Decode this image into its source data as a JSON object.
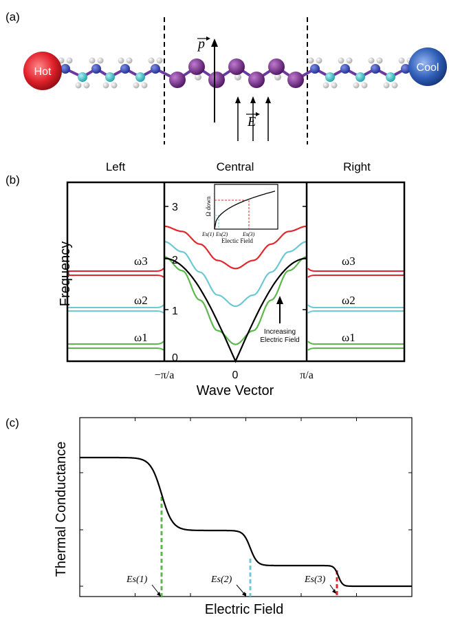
{
  "panel_a": {
    "label": "(a)",
    "hot_label": "Hot",
    "cool_label": "Cool",
    "p_label": "p",
    "e_label": "E",
    "colors": {
      "hot": "#e0202a",
      "cool": "#2f5fb8",
      "chain_blue": "#3346b4",
      "chain_cyan": "#2fc8c8",
      "chain_purple": "#7a2a8a",
      "hydrogen": "#ececec"
    }
  },
  "panel_b": {
    "label": "(b)",
    "region_left": "Left",
    "region_central": "Central",
    "region_right": "Right",
    "ylabel": "Frequency",
    "xlabel": "Wave Vector",
    "omega_labels": [
      "ω3",
      "ω2",
      "ω1"
    ],
    "yticks": [
      "0",
      "1",
      "2",
      "3"
    ],
    "xticks": [
      "−π/a",
      "0",
      "π/a"
    ],
    "annotation": "Increasing\nElectric Field",
    "inset": {
      "ylabel": "Ω down",
      "xlabel": "Electic Field",
      "xticks": [
        "Es(1)",
        "Es(2)",
        "Es(3)"
      ]
    },
    "colors": {
      "red": "#e3262b",
      "cyan": "#6cc8d4",
      "green": "#5ab94a",
      "black": "#000000"
    }
  },
  "panel_c": {
    "label": "(c)",
    "ylabel": "Thermal Conductance",
    "xlabel": "Electric Field",
    "markers": [
      "Es(1)",
      "Es(2)",
      "Es(3)"
    ],
    "marker_colors": [
      "#5ab94a",
      "#6cc8d4",
      "#e3262b"
    ]
  },
  "chart_data": [
    {
      "type": "line",
      "xlabel": "Wave Vector",
      "ylabel": "Frequency",
      "x_ticks": [
        "−π/a",
        "0",
        "π/a"
      ],
      "ylim": [
        0,
        3.35
      ],
      "series": [
        {
          "k": [
            -1,
            -0.75,
            -0.5,
            -0.25,
            0,
            0.25,
            0.5,
            0.75,
            1
          ],
          "values": [
            2.65,
            2.55,
            2.3,
            1.98,
            1.82,
            1.98,
            2.3,
            2.55,
            2.65
          ]
        },
        {
          "k": [
            -1,
            -0.75,
            -0.5,
            -0.25,
            0,
            0.25,
            0.5,
            0.75,
            1
          ],
          "values": [
            2.35,
            2.15,
            1.75,
            1.3,
            1.08,
            1.3,
            1.75,
            2.15,
            2.35
          ]
        },
        {
          "k": [
            -1,
            -0.75,
            -0.5,
            -0.25,
            0,
            0.25,
            0.5,
            0.75,
            1
          ],
          "values": [
            2.05,
            1.78,
            1.2,
            0.6,
            0.33,
            0.6,
            1.2,
            1.78,
            2.05
          ]
        },
        {
          "k": [
            -1,
            -0.75,
            -0.5,
            -0.25,
            0,
            0.25,
            0.5,
            0.75,
            1
          ],
          "values": [
            2.02,
            1.75,
            1.12,
            0.5,
            0,
            0.5,
            1.12,
            1.75,
            2.02
          ]
        }
      ]
    },
    {
      "type": "line",
      "xlabel": "Electic Field",
      "ylabel": "Ω down",
      "x_ticks": [
        "Es(1)",
        "Es(2)",
        "Es(3)"
      ],
      "series": [
        {
          "x": [
            0,
            0.2,
            0.4,
            0.6,
            0.8,
            1.0
          ],
          "values": [
            0,
            0.45,
            0.62,
            0.74,
            0.84,
            0.92
          ]
        }
      ]
    },
    {
      "type": "line",
      "xlabel": "Electric Field",
      "ylabel": "Thermal Conductance",
      "markers": [
        "Es(1)",
        "Es(2)",
        "Es(3)"
      ],
      "series": [
        {
          "x": [
            0,
            0.17,
            0.24,
            0.32,
            0.43,
            0.5,
            0.56,
            0.68,
            0.75,
            0.77,
            1.0
          ],
          "values": [
            4,
            4,
            2.6,
            2.2,
            2.2,
            1.3,
            1.2,
            1.2,
            1.1,
            0.9,
            0.9
          ]
        }
      ]
    }
  ]
}
